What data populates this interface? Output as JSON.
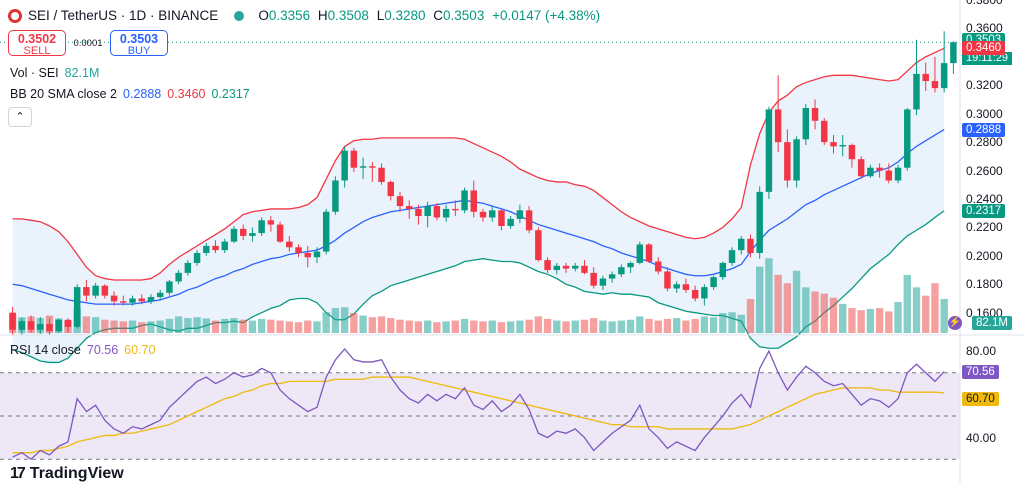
{
  "header": {
    "symbol": "SEI / TetherUS · 1D · BINANCE",
    "open_label": "O",
    "open": "0.3356",
    "high_label": "H",
    "high": "0.3508",
    "low_label": "L",
    "low": "0.3280",
    "close_label": "C",
    "close": "0.3503",
    "change": "+0.0147 (+4.38%)"
  },
  "trade": {
    "sell_price": "0.3502",
    "sell_label": "SELL",
    "spread": "0.0001",
    "buy_price": "0.3503",
    "buy_label": "BUY"
  },
  "volume_legend": {
    "label": "Vol · SEI",
    "value": "82.1M"
  },
  "bb_legend": {
    "label": "BB 20 SMA close 2",
    "basis": "0.2888",
    "upper": "0.3460",
    "lower": "0.2317"
  },
  "rsi_legend": {
    "label": "RSI 14 close",
    "rsi": "70.56",
    "ma": "60.70"
  },
  "price_axis": [
    "0.3800",
    "0.3600",
    "0.3400",
    "0.3200",
    "0.3000",
    "0.2800",
    "0.2600",
    "0.2400",
    "0.2200",
    "0.2000",
    "0.1800",
    "0.1600"
  ],
  "rsi_axis": [
    "80.00",
    "40.00"
  ],
  "badges": {
    "last_price": "0.3503",
    "countdown": "19:11:29",
    "bb_upper": "0.3460",
    "bb_basis": "0.2888",
    "bb_lower": "0.2317",
    "volume": "82.1M",
    "rsi": "70.56",
    "rsi_ma": "60.70"
  },
  "colors": {
    "up": "#26a69a",
    "down": "#ef5350",
    "bb_upper": "#f23645",
    "bb_basis": "#2962ff",
    "bb_lower": "#089981",
    "bb_fill": "#e3effa",
    "rsi_line": "#7e57c2",
    "rsi_ma": "#f0b90b",
    "rsi_band": "#ede7f6"
  },
  "icons": {
    "symbol_logo": "sei-logo-icon",
    "market_status": "market-open-dot-icon",
    "collapse": "chevron-up-icon",
    "tv": "tradingview-logo-icon"
  },
  "brand": "TradingView",
  "chart_data": {
    "type": "candlestick",
    "price_range": [
      0.145,
      0.38
    ],
    "candles": [
      [
        0.16,
        0.164,
        0.144,
        0.148
      ],
      [
        0.148,
        0.156,
        0.144,
        0.154
      ],
      [
        0.154,
        0.158,
        0.146,
        0.148
      ],
      [
        0.148,
        0.157,
        0.145,
        0.152
      ],
      [
        0.152,
        0.156,
        0.144,
        0.147
      ],
      [
        0.147,
        0.156,
        0.146,
        0.155
      ],
      [
        0.155,
        0.156,
        0.146,
        0.15
      ],
      [
        0.15,
        0.18,
        0.149,
        0.178
      ],
      [
        0.178,
        0.183,
        0.168,
        0.172
      ],
      [
        0.172,
        0.181,
        0.17,
        0.179
      ],
      [
        0.179,
        0.18,
        0.17,
        0.172
      ],
      [
        0.172,
        0.175,
        0.165,
        0.168
      ],
      [
        0.168,
        0.172,
        0.165,
        0.167
      ],
      [
        0.167,
        0.172,
        0.165,
        0.17
      ],
      [
        0.17,
        0.173,
        0.166,
        0.168
      ],
      [
        0.168,
        0.173,
        0.166,
        0.171
      ],
      [
        0.171,
        0.176,
        0.169,
        0.174
      ],
      [
        0.174,
        0.183,
        0.172,
        0.182
      ],
      [
        0.182,
        0.19,
        0.18,
        0.188
      ],
      [
        0.188,
        0.197,
        0.186,
        0.195
      ],
      [
        0.195,
        0.204,
        0.193,
        0.202
      ],
      [
        0.202,
        0.209,
        0.2,
        0.207
      ],
      [
        0.207,
        0.211,
        0.202,
        0.204
      ],
      [
        0.204,
        0.212,
        0.202,
        0.21
      ],
      [
        0.21,
        0.221,
        0.209,
        0.219
      ],
      [
        0.219,
        0.222,
        0.211,
        0.214
      ],
      [
        0.214,
        0.22,
        0.21,
        0.216
      ],
      [
        0.216,
        0.227,
        0.214,
        0.225
      ],
      [
        0.225,
        0.228,
        0.217,
        0.222
      ],
      [
        0.222,
        0.224,
        0.209,
        0.21
      ],
      [
        0.21,
        0.214,
        0.203,
        0.206
      ],
      [
        0.206,
        0.208,
        0.199,
        0.202
      ],
      [
        0.202,
        0.207,
        0.192,
        0.199
      ],
      [
        0.199,
        0.206,
        0.195,
        0.203
      ],
      [
        0.203,
        0.233,
        0.201,
        0.231
      ],
      [
        0.231,
        0.256,
        0.229,
        0.253
      ],
      [
        0.253,
        0.277,
        0.248,
        0.274
      ],
      [
        0.274,
        0.276,
        0.259,
        0.262
      ],
      [
        0.262,
        0.269,
        0.254,
        0.263
      ],
      [
        0.263,
        0.266,
        0.252,
        0.262
      ],
      [
        0.262,
        0.265,
        0.25,
        0.252
      ],
      [
        0.252,
        0.253,
        0.239,
        0.242
      ],
      [
        0.242,
        0.245,
        0.231,
        0.235
      ],
      [
        0.235,
        0.239,
        0.226,
        0.233
      ],
      [
        0.233,
        0.236,
        0.222,
        0.228
      ],
      [
        0.228,
        0.238,
        0.22,
        0.235
      ],
      [
        0.235,
        0.237,
        0.225,
        0.227
      ],
      [
        0.227,
        0.236,
        0.224,
        0.233
      ],
      [
        0.233,
        0.239,
        0.228,
        0.232
      ],
      [
        0.232,
        0.248,
        0.23,
        0.246
      ],
      [
        0.246,
        0.253,
        0.227,
        0.231
      ],
      [
        0.231,
        0.233,
        0.224,
        0.227
      ],
      [
        0.227,
        0.235,
        0.224,
        0.232
      ],
      [
        0.232,
        0.233,
        0.218,
        0.221
      ],
      [
        0.221,
        0.228,
        0.219,
        0.226
      ],
      [
        0.226,
        0.236,
        0.223,
        0.232
      ],
      [
        0.232,
        0.235,
        0.216,
        0.218
      ],
      [
        0.218,
        0.22,
        0.196,
        0.197
      ],
      [
        0.197,
        0.199,
        0.188,
        0.19
      ],
      [
        0.19,
        0.195,
        0.187,
        0.193
      ],
      [
        0.193,
        0.195,
        0.188,
        0.191
      ],
      [
        0.191,
        0.195,
        0.189,
        0.193
      ],
      [
        0.193,
        0.197,
        0.187,
        0.188
      ],
      [
        0.188,
        0.192,
        0.177,
        0.179
      ],
      [
        0.179,
        0.186,
        0.176,
        0.184
      ],
      [
        0.184,
        0.189,
        0.181,
        0.187
      ],
      [
        0.187,
        0.194,
        0.185,
        0.192
      ],
      [
        0.192,
        0.196,
        0.188,
        0.195
      ],
      [
        0.195,
        0.21,
        0.194,
        0.208
      ],
      [
        0.208,
        0.209,
        0.195,
        0.196
      ],
      [
        0.196,
        0.199,
        0.187,
        0.189
      ],
      [
        0.189,
        0.192,
        0.175,
        0.177
      ],
      [
        0.177,
        0.182,
        0.174,
        0.18
      ],
      [
        0.18,
        0.184,
        0.174,
        0.176
      ],
      [
        0.176,
        0.179,
        0.168,
        0.17
      ],
      [
        0.17,
        0.18,
        0.165,
        0.178
      ],
      [
        0.178,
        0.186,
        0.176,
        0.185
      ],
      [
        0.185,
        0.196,
        0.183,
        0.195
      ],
      [
        0.195,
        0.206,
        0.193,
        0.204
      ],
      [
        0.204,
        0.214,
        0.201,
        0.212
      ],
      [
        0.212,
        0.215,
        0.199,
        0.202
      ],
      [
        0.202,
        0.249,
        0.198,
        0.245
      ],
      [
        0.245,
        0.305,
        0.24,
        0.303
      ],
      [
        0.303,
        0.327,
        0.273,
        0.28
      ],
      [
        0.28,
        0.289,
        0.248,
        0.253
      ],
      [
        0.253,
        0.284,
        0.248,
        0.282
      ],
      [
        0.282,
        0.307,
        0.278,
        0.304
      ],
      [
        0.304,
        0.31,
        0.289,
        0.295
      ],
      [
        0.295,
        0.297,
        0.278,
        0.28
      ],
      [
        0.28,
        0.285,
        0.272,
        0.277
      ],
      [
        0.277,
        0.285,
        0.27,
        0.278
      ],
      [
        0.278,
        0.279,
        0.262,
        0.268
      ],
      [
        0.268,
        0.27,
        0.254,
        0.256
      ],
      [
        0.256,
        0.264,
        0.255,
        0.262
      ],
      [
        0.262,
        0.265,
        0.255,
        0.26
      ],
      [
        0.26,
        0.265,
        0.251,
        0.253
      ],
      [
        0.253,
        0.264,
        0.251,
        0.262
      ],
      [
        0.262,
        0.304,
        0.26,
        0.303
      ],
      [
        0.303,
        0.352,
        0.299,
        0.328
      ],
      [
        0.328,
        0.336,
        0.316,
        0.323
      ],
      [
        0.323,
        0.34,
        0.315,
        0.318
      ],
      [
        0.318,
        0.358,
        0.315,
        0.3356
      ],
      [
        0.3356,
        0.3508,
        0.328,
        0.3503
      ]
    ],
    "volume_millions": [
      45,
      38,
      40,
      36,
      42,
      35,
      30,
      60,
      40,
      38,
      32,
      30,
      28,
      30,
      26,
      28,
      30,
      34,
      40,
      36,
      38,
      35,
      30,
      34,
      36,
      32,
      30,
      34,
      32,
      30,
      28,
      26,
      30,
      28,
      50,
      60,
      62,
      48,
      42,
      38,
      40,
      36,
      32,
      30,
      28,
      30,
      26,
      28,
      30,
      34,
      30,
      28,
      30,
      26,
      28,
      30,
      32,
      40,
      34,
      30,
      28,
      30,
      32,
      36,
      30,
      28,
      30,
      32,
      40,
      34,
      30,
      34,
      36,
      30,
      34,
      40,
      38,
      48,
      50,
      44,
      82,
      160,
      180,
      140,
      120,
      150,
      110,
      100,
      95,
      85,
      70,
      60,
      55,
      58,
      60,
      52,
      75,
      140,
      110,
      90,
      120,
      82.1
    ],
    "volume_range": [
      0,
      200
    ],
    "bb_upper": [
      0.226,
      0.226,
      0.225,
      0.224,
      0.221,
      0.217,
      0.21,
      0.201,
      0.192,
      0.186,
      0.184,
      0.183,
      0.183,
      0.183,
      0.183,
      0.184,
      0.188,
      0.194,
      0.199,
      0.203,
      0.207,
      0.211,
      0.215,
      0.219,
      0.224,
      0.229,
      0.231,
      0.232,
      0.233,
      0.233,
      0.233,
      0.234,
      0.236,
      0.241,
      0.254,
      0.267,
      0.277,
      0.281,
      0.282,
      0.282,
      0.283,
      0.283,
      0.283,
      0.283,
      0.283,
      0.283,
      0.283,
      0.283,
      0.283,
      0.282,
      0.279,
      0.276,
      0.273,
      0.27,
      0.266,
      0.261,
      0.258,
      0.255,
      0.253,
      0.252,
      0.252,
      0.25,
      0.249,
      0.246,
      0.241,
      0.236,
      0.231,
      0.227,
      0.224,
      0.221,
      0.219,
      0.217,
      0.215,
      0.213,
      0.212,
      0.213,
      0.216,
      0.22,
      0.226,
      0.234,
      0.264,
      0.286,
      0.301,
      0.309,
      0.313,
      0.319,
      0.322,
      0.324,
      0.326,
      0.327,
      0.327,
      0.327,
      0.326,
      0.325,
      0.324,
      0.323,
      0.324,
      0.33,
      0.336,
      0.34,
      0.343,
      0.346
    ],
    "bb_basis": [
      0.18,
      0.179,
      0.177,
      0.175,
      0.173,
      0.171,
      0.169,
      0.168,
      0.167,
      0.166,
      0.166,
      0.166,
      0.166,
      0.166,
      0.167,
      0.168,
      0.169,
      0.171,
      0.173,
      0.176,
      0.178,
      0.181,
      0.184,
      0.186,
      0.189,
      0.191,
      0.194,
      0.196,
      0.198,
      0.199,
      0.201,
      0.202,
      0.203,
      0.204,
      0.207,
      0.211,
      0.216,
      0.22,
      0.224,
      0.227,
      0.229,
      0.231,
      0.232,
      0.233,
      0.234,
      0.235,
      0.236,
      0.237,
      0.238,
      0.239,
      0.238,
      0.237,
      0.235,
      0.233,
      0.231,
      0.228,
      0.225,
      0.222,
      0.22,
      0.218,
      0.216,
      0.214,
      0.212,
      0.21,
      0.207,
      0.205,
      0.202,
      0.2,
      0.198,
      0.196,
      0.193,
      0.191,
      0.189,
      0.187,
      0.186,
      0.186,
      0.187,
      0.189,
      0.191,
      0.194,
      0.203,
      0.211,
      0.218,
      0.222,
      0.226,
      0.231,
      0.236,
      0.239,
      0.243,
      0.246,
      0.249,
      0.252,
      0.255,
      0.258,
      0.26,
      0.262,
      0.266,
      0.272,
      0.277,
      0.281,
      0.285,
      0.2888
    ],
    "bb_lower": [
      0.134,
      0.132,
      0.129,
      0.126,
      0.125,
      0.125,
      0.128,
      0.135,
      0.142,
      0.146,
      0.148,
      0.149,
      0.149,
      0.149,
      0.151,
      0.152,
      0.15,
      0.148,
      0.147,
      0.149,
      0.149,
      0.151,
      0.153,
      0.153,
      0.154,
      0.153,
      0.157,
      0.16,
      0.163,
      0.165,
      0.169,
      0.17,
      0.17,
      0.167,
      0.16,
      0.155,
      0.155,
      0.159,
      0.166,
      0.172,
      0.175,
      0.179,
      0.181,
      0.183,
      0.185,
      0.187,
      0.189,
      0.191,
      0.193,
      0.196,
      0.197,
      0.198,
      0.197,
      0.196,
      0.196,
      0.195,
      0.192,
      0.189,
      0.187,
      0.184,
      0.18,
      0.178,
      0.175,
      0.174,
      0.173,
      0.174,
      0.173,
      0.173,
      0.172,
      0.171,
      0.167,
      0.165,
      0.163,
      0.161,
      0.16,
      0.159,
      0.158,
      0.158,
      0.156,
      0.154,
      0.142,
      0.136,
      0.135,
      0.135,
      0.139,
      0.143,
      0.15,
      0.154,
      0.16,
      0.165,
      0.171,
      0.177,
      0.184,
      0.191,
      0.196,
      0.201,
      0.208,
      0.214,
      0.218,
      0.222,
      0.227,
      0.2317
    ],
    "rsi": [
      31,
      33,
      30,
      34,
      32,
      36,
      38,
      58,
      52,
      55,
      48,
      44,
      42,
      45,
      44,
      46,
      48,
      54,
      58,
      62,
      66,
      68,
      65,
      67,
      70,
      68,
      69,
      72,
      70,
      62,
      58,
      55,
      52,
      54,
      68,
      76,
      81,
      76,
      75,
      75,
      76,
      68,
      62,
      58,
      56,
      60,
      57,
      60,
      58,
      63,
      55,
      53,
      57,
      52,
      55,
      60,
      53,
      42,
      40,
      43,
      42,
      44,
      40,
      34,
      38,
      42,
      45,
      48,
      55,
      44,
      40,
      35,
      38,
      36,
      34,
      40,
      45,
      50,
      56,
      60,
      54,
      72,
      80,
      70,
      62,
      68,
      73,
      70,
      66,
      64,
      65,
      60,
      55,
      58,
      57,
      54,
      58,
      70,
      74,
      70,
      66,
      70.56
    ],
    "rsi_ma": [
      33,
      33,
      33,
      34,
      34,
      35,
      36,
      38,
      39,
      40,
      41,
      41,
      42,
      42,
      43,
      44,
      45,
      46,
      48,
      50,
      52,
      54,
      56,
      58,
      59,
      61,
      62,
      64,
      65,
      65,
      66,
      66,
      66,
      66,
      66,
      67,
      67,
      67,
      67,
      68,
      68,
      68,
      68,
      68,
      67,
      66,
      65,
      64,
      63,
      62,
      61,
      60,
      59,
      58,
      57,
      56,
      55,
      54,
      53,
      52,
      51,
      50,
      49,
      48,
      47,
      46,
      46,
      45,
      45,
      45,
      45,
      44,
      44,
      44,
      44,
      44,
      44,
      44,
      44,
      45,
      46,
      48,
      50,
      52,
      54,
      56,
      58,
      60,
      61,
      62,
      63,
      63,
      63,
      63,
      62,
      62,
      61,
      61,
      61,
      61,
      61,
      60.7
    ],
    "rsi_range": [
      25,
      87
    ],
    "rsi_levels": [
      70,
      50,
      30
    ]
  }
}
